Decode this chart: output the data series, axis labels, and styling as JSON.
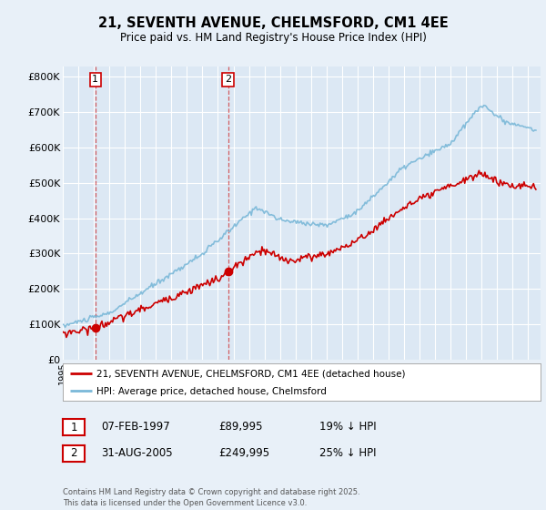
{
  "title": "21, SEVENTH AVENUE, CHELMSFORD, CM1 4EE",
  "subtitle": "Price paid vs. HM Land Registry's House Price Index (HPI)",
  "bg_color": "#e8f0f8",
  "plot_bg_color": "#dce8f4",
  "grid_color": "#ffffff",
  "red_line_color": "#cc0000",
  "blue_line_color": "#7ab8d8",
  "annotation1": {
    "label": "1",
    "date_str": "07-FEB-1997",
    "price": "£89,995",
    "hpi_note": "19% ↓ HPI",
    "x_year": 1997.1
  },
  "annotation2": {
    "label": "2",
    "date_str": "31-AUG-2005",
    "price": "£249,995",
    "hpi_note": "25% ↓ HPI",
    "x_year": 2005.66
  },
  "legend_line1": "21, SEVENTH AVENUE, CHELMSFORD, CM1 4EE (detached house)",
  "legend_line2": "HPI: Average price, detached house, Chelmsford",
  "footer": "Contains HM Land Registry data © Crown copyright and database right 2025.\nThis data is licensed under the Open Government Licence v3.0.",
  "ylabel_ticks": [
    "£0",
    "£100K",
    "£200K",
    "£300K",
    "£400K",
    "£500K",
    "£600K",
    "£700K",
    "£800K"
  ],
  "ytick_vals": [
    0,
    100000,
    200000,
    300000,
    400000,
    500000,
    600000,
    700000,
    800000
  ],
  "ylim": [
    0,
    830000
  ],
  "xlim_start": 1995.0,
  "xlim_end": 2025.8
}
